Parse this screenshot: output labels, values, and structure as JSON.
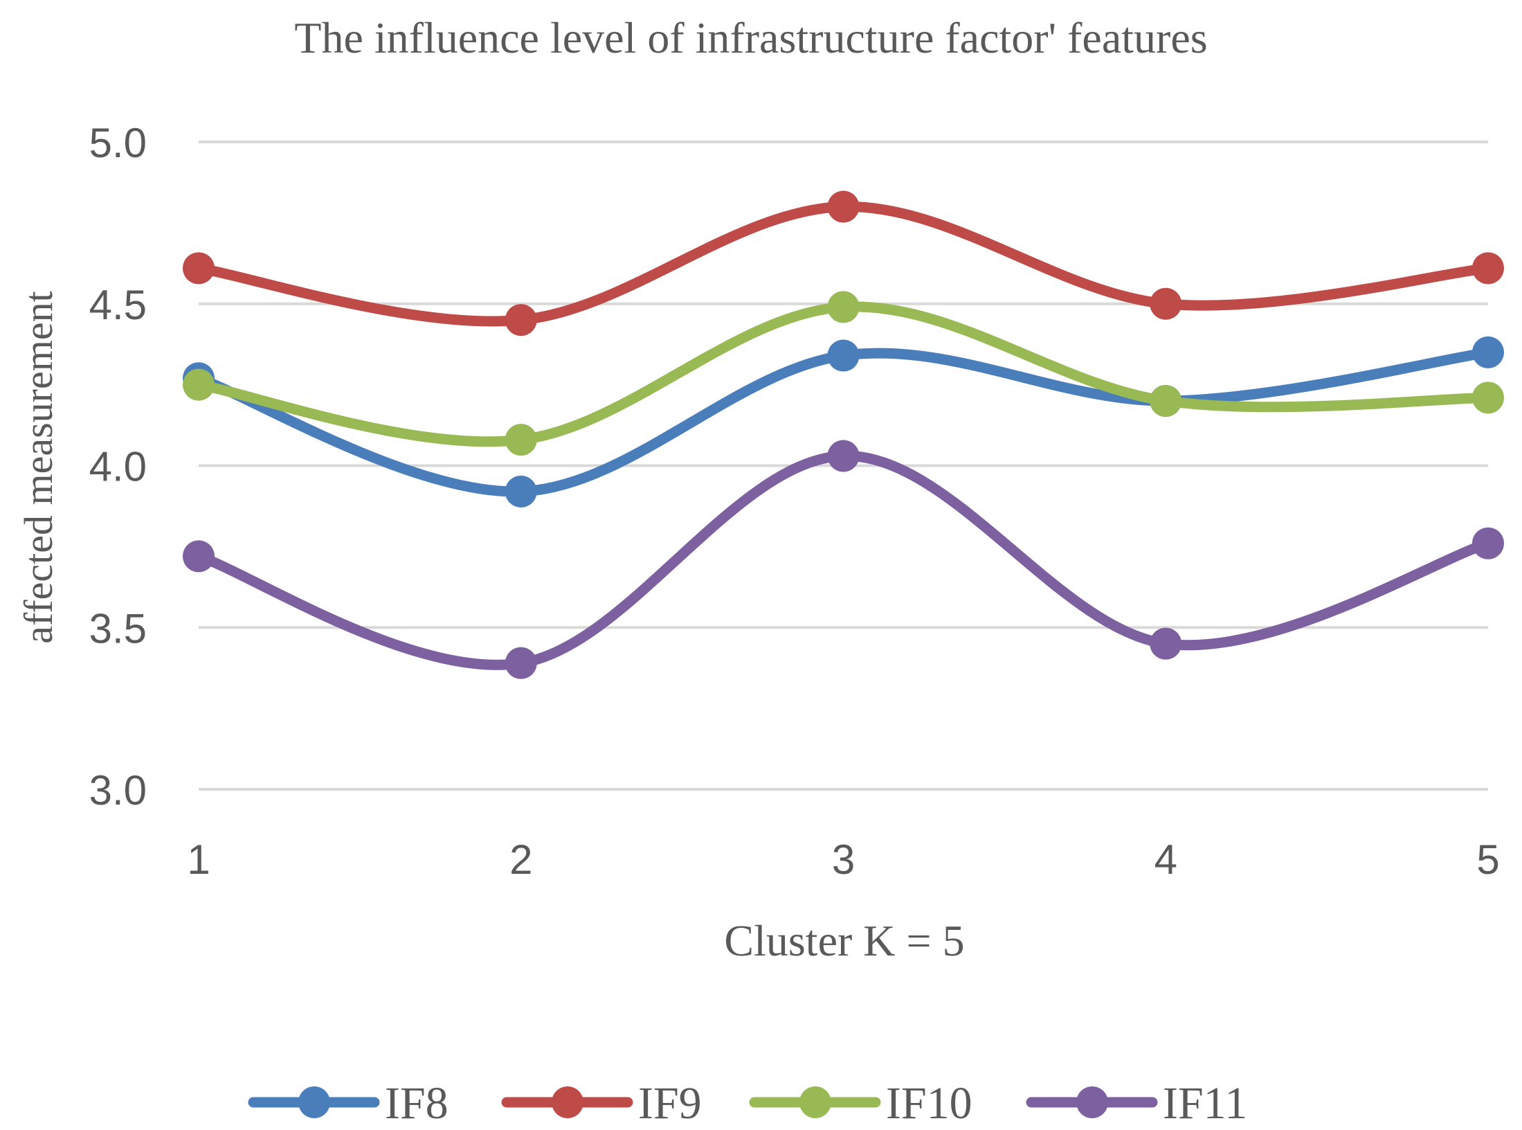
{
  "chart_data": {
    "type": "line",
    "title": "The influence level of infrastructure factor' features",
    "xlabel": "Cluster K = 5",
    "ylabel": "affected measurement",
    "categories": [
      "1",
      "2",
      "3",
      "4",
      "5"
    ],
    "ylim": [
      3.0,
      5.0
    ],
    "yticks": [
      "3.0",
      "3.5",
      "4.0",
      "4.5",
      "5.0"
    ],
    "ytick_values": [
      3.0,
      3.5,
      4.0,
      4.5,
      5.0
    ],
    "grid": true,
    "smooth": true,
    "legend_position": "bottom",
    "series": [
      {
        "name": "IF8",
        "color": "#4a7ebb",
        "values": [
          4.27,
          3.92,
          4.34,
          4.2,
          4.35
        ]
      },
      {
        "name": "IF9",
        "color": "#be4b48",
        "values": [
          4.61,
          4.45,
          4.8,
          4.5,
          4.61
        ]
      },
      {
        "name": "IF10",
        "color": "#98b954",
        "values": [
          4.25,
          4.08,
          4.49,
          4.2,
          4.21
        ]
      },
      {
        "name": "IF11",
        "color": "#7d60a0",
        "values": [
          3.72,
          3.39,
          4.03,
          3.45,
          3.76
        ]
      }
    ]
  }
}
